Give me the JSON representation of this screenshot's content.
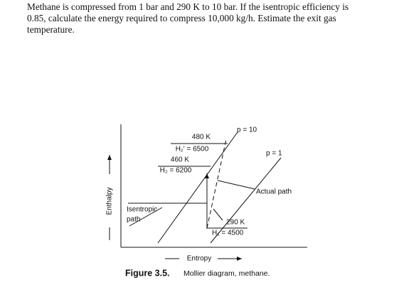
{
  "problem": {
    "lines": [
      "Methane is compressed from 1 bar and 290 K to 10 bar. If the isentropic efficiency is",
      "0.85, calculate the energy required to compress 10,000 kg/h. Estimate the exit gas",
      "temperature."
    ]
  },
  "diagram": {
    "y_axis_label": "Enthalpy",
    "x_axis_label": "Entropy",
    "labels": {
      "t480": "480 K",
      "h2prime": "H₂′ = 6500",
      "t460": "460 K",
      "h2": "H₂ = 6200",
      "p10": "p = 10",
      "p1": "p = 1",
      "actual": "Actual path",
      "isentropic1": "Isentropic",
      "isentropic2": "path",
      "t290": "290 K",
      "h1": "H₁ = 4500"
    }
  },
  "caption": {
    "number": "Figure 3.5.",
    "text": "Mollier diagram, methane."
  }
}
